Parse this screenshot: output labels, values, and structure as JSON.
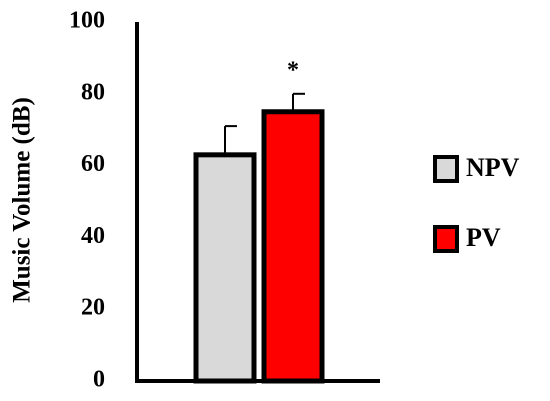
{
  "chart_data": {
    "type": "bar",
    "y_label": "Music Volume (dB)",
    "categories": [
      null
    ],
    "series": [
      {
        "name": "NPV",
        "color": "#d9d9d9",
        "values": [
          63
        ],
        "errors": [
          8
        ]
      },
      {
        "name": "PV",
        "color": "#ff0000",
        "values": [
          75
        ],
        "errors": [
          5
        ]
      }
    ],
    "annotation": "*",
    "ylim": [
      0,
      100
    ],
    "yticks": [
      0,
      20,
      40,
      60,
      80,
      100
    ],
    "legend": "right"
  }
}
